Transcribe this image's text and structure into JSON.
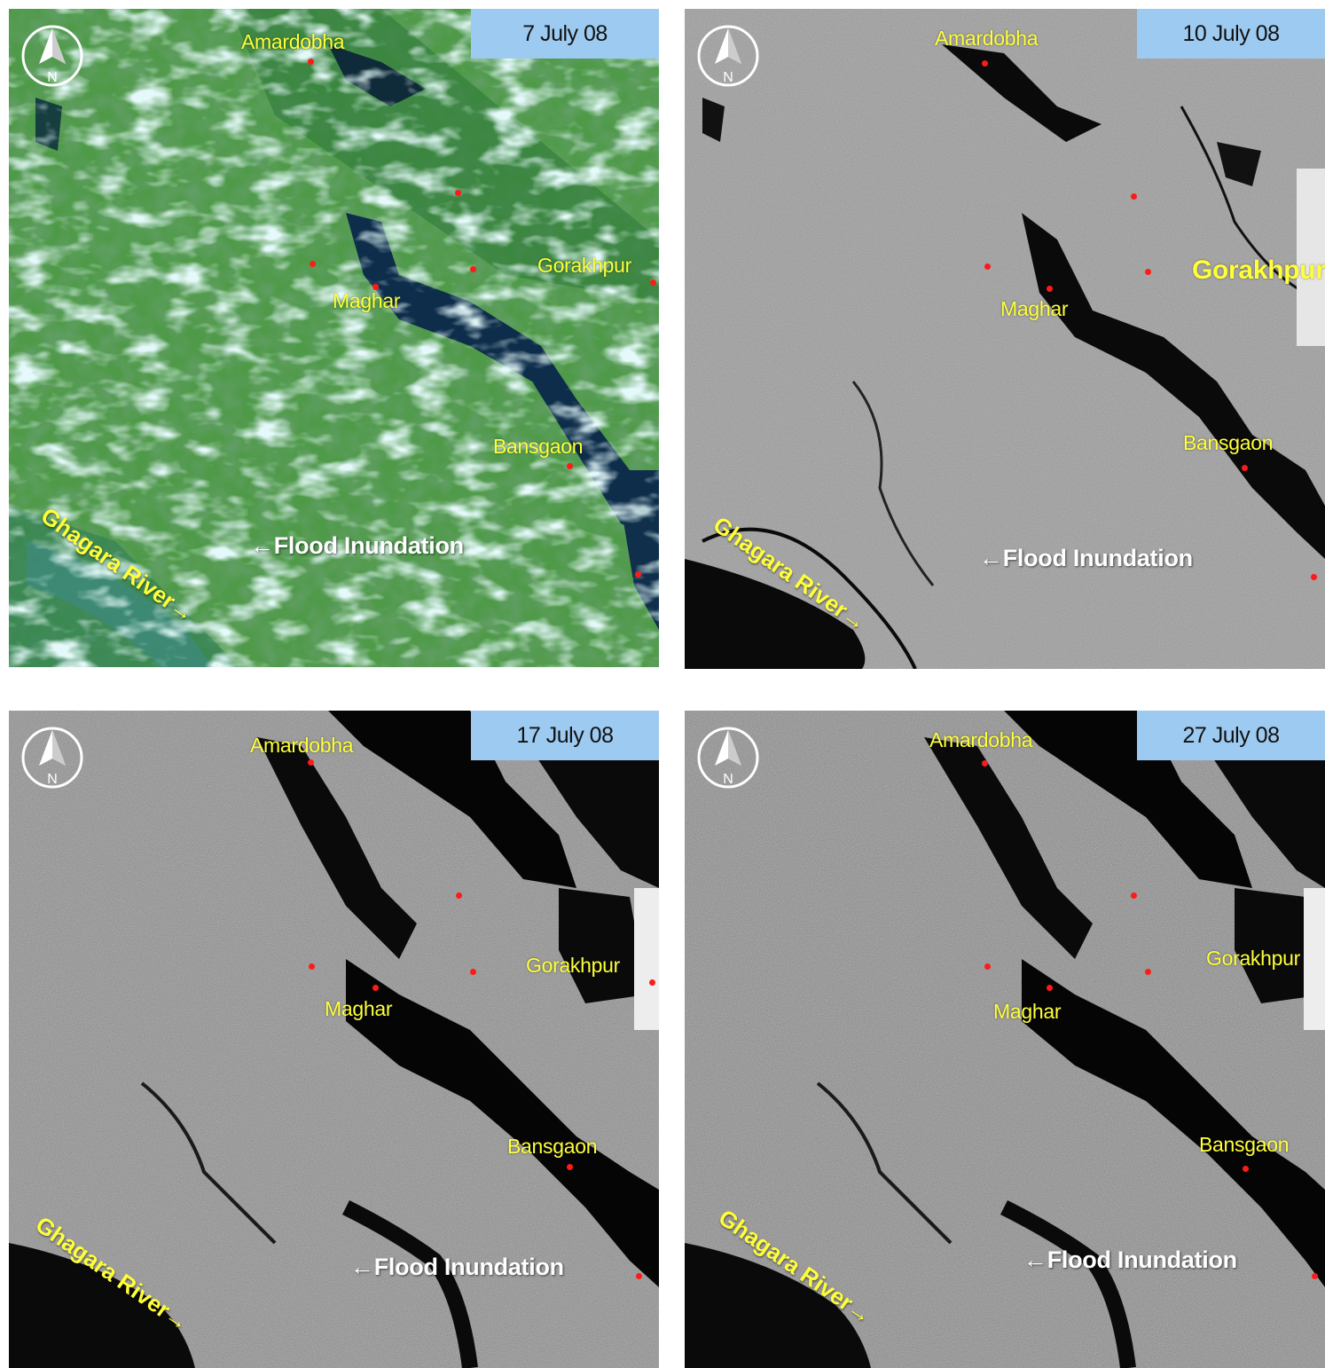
{
  "panels": [
    {
      "date": "7 July 08",
      "towns": {
        "amardobha": "Amardobha",
        "gorakhpur": "Gorakhpur",
        "maghar": "Maghar",
        "bansgaon": "Bansgaon"
      },
      "flood_label": "←Flood Inundation",
      "river_label": "Ghagara River→",
      "north_letter": "N",
      "imagery": "optical-color"
    },
    {
      "date": "10 July 08",
      "towns": {
        "amardobha": "Amardobha",
        "gorakhpur": "Gorakhpur",
        "maghar": "Maghar",
        "bansgaon": "Bansgaon"
      },
      "flood_label": "←Flood Inundation",
      "river_label": "Ghagara River→",
      "north_letter": "N",
      "imagery": "radar-grayscale"
    },
    {
      "date": "17 July 08",
      "towns": {
        "amardobha": "Amardobha",
        "gorakhpur": "Gorakhpur",
        "maghar": "Maghar",
        "bansgaon": "Bansgaon"
      },
      "flood_label": "←Flood Inundation",
      "river_label": "Ghagara River→",
      "north_letter": "N",
      "imagery": "radar-grayscale"
    },
    {
      "date": "27 July 08",
      "towns": {
        "amardobha": "Amardobha",
        "gorakhpur": "Gorakhpur",
        "maghar": "Maghar",
        "bansgaon": "Bansgaon"
      },
      "flood_label": "←Flood Inundation",
      "river_label": "Ghagara River→",
      "north_letter": "N",
      "imagery": "radar-grayscale"
    }
  ],
  "colors": {
    "date_box": "#9dcaf0",
    "town_label": "#ffff3a",
    "town_marker": "#ff1a1a",
    "flood_label": "#ffffff",
    "water": "#0a0a0a"
  }
}
